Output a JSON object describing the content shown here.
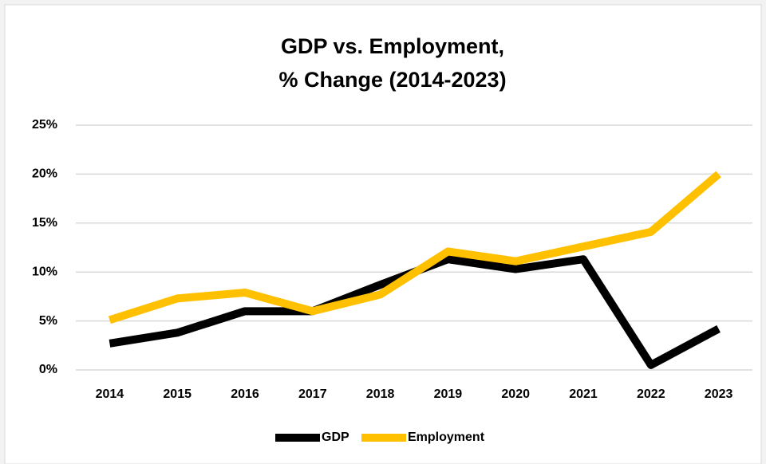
{
  "chart_data": {
    "type": "line",
    "title": [
      "GDP vs. Employment,",
      "% Change (2014-2023)"
    ],
    "categories": [
      "2014",
      "2015",
      "2016",
      "2017",
      "2018",
      "2019",
      "2020",
      "2021",
      "2022",
      "2023"
    ],
    "series": [
      {
        "name": "GDP",
        "color": "#000000",
        "values": [
          2.7,
          3.8,
          6.0,
          6.0,
          8.7,
          11.3,
          10.3,
          11.3,
          0.5,
          4.2
        ]
      },
      {
        "name": "Employment",
        "color": "#ffc000",
        "values": [
          5.1,
          7.3,
          7.9,
          6.0,
          7.7,
          12.1,
          11.1,
          12.6,
          14.1,
          20.0
        ]
      }
    ],
    "ylim": [
      0,
      25
    ],
    "yticks": [
      {
        "value": 0,
        "label": "0%"
      },
      {
        "value": 5,
        "label": "5%"
      },
      {
        "value": 10,
        "label": "10%"
      },
      {
        "value": 15,
        "label": "15%"
      },
      {
        "value": 20,
        "label": "20%"
      },
      {
        "value": 25,
        "label": "25%"
      }
    ],
    "grid": true,
    "legend": "bottom"
  }
}
